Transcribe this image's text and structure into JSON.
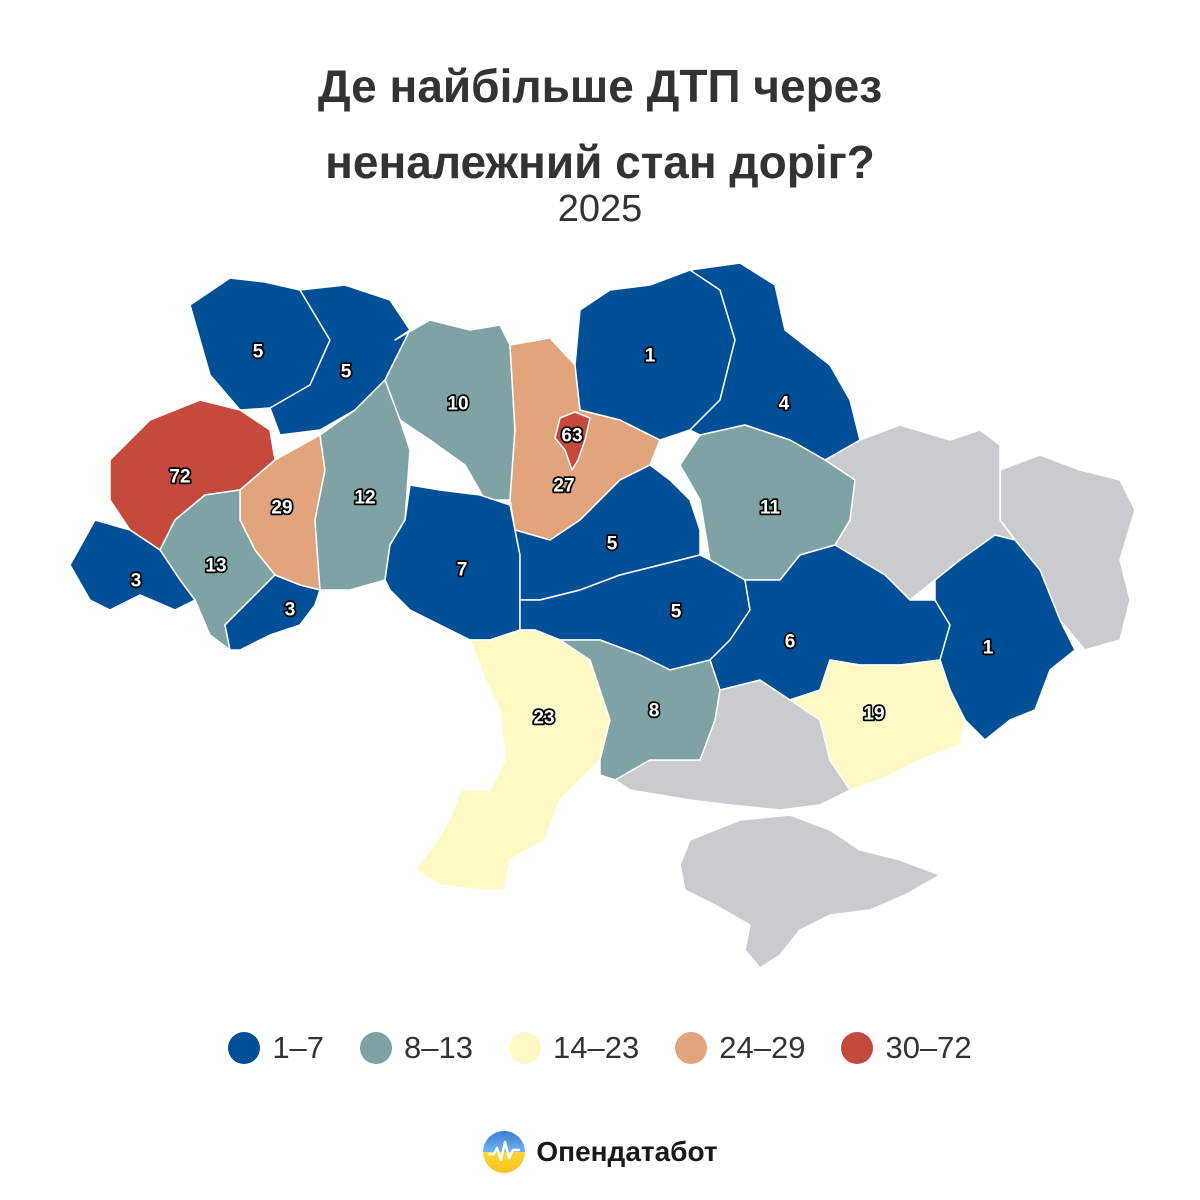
{
  "title_line1": "Де найбільше ДТП через",
  "title_line2": "неналежний стан доріг?",
  "subtitle": "2025",
  "colors": {
    "bin1": "#004f97",
    "bin2": "#7fa2a4",
    "bin3": "#fffac5",
    "bin4": "#e2a47d",
    "bin5": "#c54a3d",
    "nodata": "#cacbcf",
    "border": "#ffffff"
  },
  "legend": [
    {
      "label": "1–7",
      "color": "#004f97"
    },
    {
      "label": "8–13",
      "color": "#7fa2a4"
    },
    {
      "label": "14–23",
      "color": "#fffac5"
    },
    {
      "label": "24–29",
      "color": "#e2a47d"
    },
    {
      "label": "30–72",
      "color": "#c54a3d"
    }
  ],
  "regions": [
    {
      "value": "5",
      "bin": 1
    },
    {
      "value": "5",
      "bin": 1
    },
    {
      "value": "10",
      "bin": 2
    },
    {
      "value": "63",
      "bin": 5
    },
    {
      "value": "27",
      "bin": 4
    },
    {
      "value": "1",
      "bin": 1
    },
    {
      "value": "4",
      "bin": 1
    },
    {
      "value": "72",
      "bin": 5
    },
    {
      "value": "29",
      "bin": 4
    },
    {
      "value": "12",
      "bin": 2
    },
    {
      "value": "11",
      "bin": 2
    },
    {
      "value": "13",
      "bin": 2
    },
    {
      "value": "3",
      "bin": 1
    },
    {
      "value": "3",
      "bin": 1
    },
    {
      "value": "7",
      "bin": 1
    },
    {
      "value": "5",
      "bin": 1
    },
    {
      "value": "5",
      "bin": 1
    },
    {
      "value": "6",
      "bin": 1
    },
    {
      "value": "1",
      "bin": 1
    },
    {
      "value": "23",
      "bin": 3
    },
    {
      "value": "8",
      "bin": 2
    },
    {
      "value": "19",
      "bin": 3
    }
  ],
  "logo": {
    "text": "Опендатабот",
    "icon": "opendatabot-logo-icon"
  }
}
